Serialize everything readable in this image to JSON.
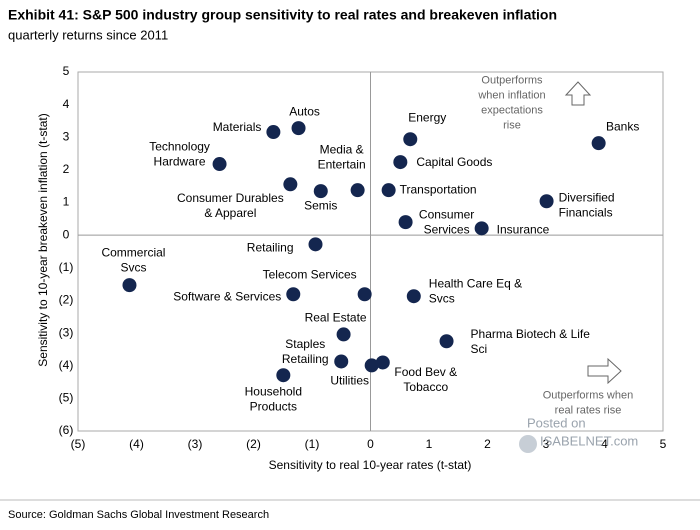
{
  "chart_data": {
    "type": "scatter",
    "title": "Exhibit 41: S&P 500 industry group sensitivity to real rates and breakeven inflation",
    "subtitle": "quarterly returns since 2011",
    "x_label": "Sensitivity to real 10-year rates (t-stat)",
    "y_label": "Sensitivity to 10-year breakeven inflation (t-stat)",
    "source": "Source: Goldman Sachs Global Investment Research",
    "annotations": [
      "Outperforms\nwhen inflation\nexpectations\nrise",
      "Outperforms when\nreal rates rise"
    ],
    "watermark": [
      "Posted on",
      "ISABELNET.com"
    ],
    "color": "#14264f",
    "xlim": [
      -5,
      5
    ],
    "ylim": [
      -6,
      5
    ],
    "xticks": [
      {
        "value": -5,
        "label": "(5)"
      },
      {
        "value": -4,
        "label": "(4)"
      },
      {
        "value": -3,
        "label": "(3)"
      },
      {
        "value": -2,
        "label": "(2)"
      },
      {
        "value": -1,
        "label": "(1)"
      },
      0,
      1,
      2,
      3,
      4,
      5
    ],
    "yticks": [
      5,
      4,
      3,
      2,
      1,
      0,
      {
        "value": -1,
        "label": "(1)"
      },
      {
        "value": -2,
        "label": "(2)"
      },
      {
        "value": -3,
        "label": "(3)"
      },
      {
        "value": -4,
        "label": "(4)"
      },
      {
        "value": -5,
        "label": "(5)"
      },
      {
        "value": -6,
        "label": "(6)"
      }
    ],
    "labels": [
      "Autos",
      "Materials",
      "Technology\nHardware",
      "Consumer Durables\n& Apparel",
      "Semis",
      "Media &\nEntertain",
      "Energy",
      "Capital Goods",
      "Transportation",
      "Consumer\nServices",
      "Insurance",
      "Banks",
      "Diversified\nFinancials",
      "Retailing",
      "Commercial\nSvcs",
      "Telecom Services",
      "Software & Services",
      "Health Care Eq &\nSvcs",
      "Real Estate",
      "Pharma Biotech & Life\nSci",
      "Staples\nRetailing",
      "Utilities",
      "Food Bev &\nTobacco",
      "Household\nProducts"
    ],
    "x": [
      -1.23,
      -1.66,
      -2.58,
      -1.37,
      -0.85,
      -0.22,
      0.68,
      0.51,
      0.31,
      0.6,
      1.9,
      3.9,
      3.01,
      -0.94,
      -4.12,
      -0.1,
      -1.32,
      0.74,
      -0.46,
      1.3,
      -0.5,
      0.02,
      0.21,
      -1.49
    ],
    "values": [
      3.28,
      3.16,
      2.18,
      1.56,
      1.35,
      1.38,
      2.94,
      2.24,
      1.38,
      0.4,
      0.21,
      2.82,
      1.04,
      -0.28,
      -1.53,
      -1.81,
      -1.81,
      -1.87,
      -3.04,
      -3.25,
      -3.87,
      -3.99,
      -3.9,
      -4.29
    ]
  }
}
